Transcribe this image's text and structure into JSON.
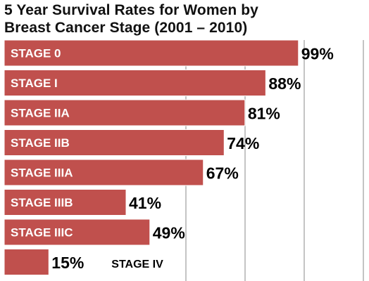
{
  "chart_data": {
    "type": "bar",
    "orientation": "horizontal",
    "title_lines": [
      "5 Year Survival Rates for Women by",
      "Breast Cancer Stage (2001 – 2010)"
    ],
    "categories": [
      "STAGE 0",
      "STAGE I",
      "STAGE IIA",
      "STAGE IIB",
      "STAGE IIIA",
      "STAGE IIIB",
      "STAGE IIIC",
      "STAGE IV"
    ],
    "values": [
      99,
      88,
      81,
      74,
      67,
      41,
      49,
      15
    ],
    "value_labels": [
      "99%",
      "88%",
      "81%",
      "74%",
      "67%",
      "41%",
      "49%",
      "15%"
    ],
    "xlim": [
      0,
      100
    ],
    "grid": true,
    "legend": "none",
    "colors": {
      "bar": "#c0504d",
      "bar_edge": "#ffffff",
      "category_text_in_bar": "#ffffff",
      "category_text_outside": "#000000",
      "value_text": "#000000",
      "grid": "#888888"
    }
  }
}
